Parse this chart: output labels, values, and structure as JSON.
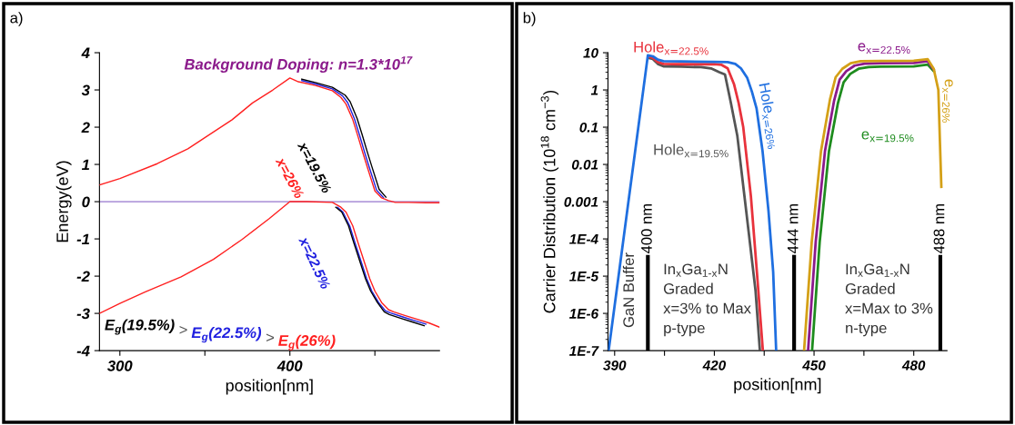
{
  "chart_data": [
    {
      "type": "line",
      "title": "a)",
      "xlabel": "position[nm]",
      "ylabel": "Energy(eV)",
      "xlim": [
        288,
        488
      ],
      "xticks": [
        300,
        {
          "value": 350,
          "label": null
        },
        400,
        {
          "value": 450,
          "label": null
        }
      ],
      "ylim": [
        -4,
        4
      ],
      "yticks": [
        -4,
        -3,
        -2,
        -1,
        0,
        1,
        2,
        3,
        4
      ],
      "ref_lines": [
        {
          "axis": "y",
          "value": 0,
          "color": "#b39ddb"
        }
      ],
      "series": [
        {
          "color": "#ff2020",
          "x": [
            288,
            300,
            315,
            336,
            355,
            372,
            388,
            400,
            410,
            425,
            430,
            433,
            437,
            440,
            444,
            447,
            450,
            454,
            458,
            461,
            468,
            475,
            482,
            488
          ],
          "values": [
            -3.0,
            -2.73,
            -2.42,
            -2.02,
            -1.55,
            -1.01,
            -0.45,
            0.0,
            0.0,
            -0.02,
            -0.15,
            -0.28,
            -0.65,
            -1.09,
            -1.65,
            -2.07,
            -2.4,
            -2.71,
            -2.9,
            -2.96,
            -3.06,
            -3.16,
            -3.26,
            -3.37
          ]
        },
        {
          "color": "#2020e0",
          "x": [
            407,
            415,
            425,
            431,
            434,
            438,
            441,
            444,
            447,
            451,
            455
          ],
          "values": [
            3.25,
            3.16,
            3.03,
            2.84,
            2.66,
            2.22,
            1.78,
            1.32,
            0.88,
            0.31,
            0.11
          ]
        },
        {
          "name": "x=22.5%",
          "color": "#2020e0",
          "x": [
            428,
            431.2,
            435.2,
            438.2,
            442.2,
            445.2,
            448.2,
            452.2,
            456.2,
            459.2,
            466,
            473,
            480
          ],
          "values": [
            -0.15,
            -0.28,
            -0.65,
            -1.09,
            -1.65,
            -2.07,
            -2.4,
            -2.71,
            -2.93,
            -2.99,
            -3.09,
            -3.19,
            -3.29
          ]
        },
        {
          "name": "x=19.5%",
          "color": "#000000",
          "x": [
            407,
            415,
            425,
            432.5,
            435.5,
            439.5,
            442.5,
            445.5,
            448.5,
            452.5,
            456.5
          ],
          "values": [
            3.29,
            3.2,
            3.07,
            2.86,
            2.68,
            2.24,
            1.8,
            1.34,
            0.9,
            0.33,
            0.12
          ]
        },
        {
          "color": "#000000",
          "x": [
            427,
            430.5,
            434.5,
            437.5,
            441.5,
            444.5,
            447.5,
            451.5,
            455.5,
            458.5,
            465,
            472,
            479
          ],
          "values": [
            -0.15,
            -0.28,
            -0.65,
            -1.09,
            -1.65,
            -2.07,
            -2.4,
            -2.71,
            -2.96,
            -3.03,
            -3.13,
            -3.23,
            -3.33
          ]
        },
        {
          "name": "x=26%",
          "color": "#ff2020",
          "x": [
            288,
            300,
            322,
            340,
            354,
            366,
            378,
            390,
            400,
            405,
            415,
            425,
            430,
            433,
            437,
            440,
            443,
            446,
            450,
            454,
            458,
            462,
            470,
            480,
            488
          ],
          "values": [
            0.45,
            0.62,
            1.02,
            1.42,
            1.84,
            2.2,
            2.65,
            3.0,
            3.32,
            3.22,
            3.12,
            2.98,
            2.8,
            2.62,
            2.2,
            1.76,
            1.3,
            0.86,
            0.29,
            0.1,
            0.03,
            -0.02,
            -0.02,
            -0.03,
            -0.03
          ]
        }
      ],
      "annotations": [
        "Background Doping: n=1.3*10$^{17}$",
        "E$_{g}$(19.5%)",
        ">",
        "E$_{g}$(22.5%)",
        ">",
        "E$_{g}$(26%)"
      ]
    },
    {
      "type": "line",
      "title": "b)",
      "xlabel": "position[nm]",
      "ylabel": "Carrier Distribution (10$^{18}$ cm$^{−3}$)",
      "log": "y",
      "xlim": [
        388,
        490
      ],
      "xticks": [
        390,
        {
          "value": 405,
          "label": null
        },
        420,
        {
          "value": 435,
          "label": null
        },
        450,
        {
          "value": 465,
          "label": null
        },
        480
      ],
      "ylim": [
        1e-07,
        10
      ],
      "yticks": [
        {
          "value": 1e-07,
          "label": "1E-7"
        },
        {
          "value": 1e-06,
          "label": "1E-6"
        },
        {
          "value": 1e-05,
          "label": "1E-5"
        },
        {
          "value": 0.0001,
          "label": "1E-4"
        },
        0.001,
        0.01,
        0.1,
        1,
        10
      ],
      "ref_lines": [
        {
          "axis": "x",
          "value": 400,
          "label": "400 nm",
          "color": "#000000"
        },
        {
          "axis": "x",
          "value": 444,
          "label": "444 nm",
          "color": "#000000"
        },
        {
          "axis": "x",
          "value": 488,
          "label": "488 nm",
          "color": "#000000"
        }
      ],
      "series": [
        {
          "name": "Hole$_{x=19.5%}$",
          "color": "#555555",
          "x": [
            400.4,
            401.5,
            403,
            404.7,
            410,
            416,
            419,
            421.5,
            423.2,
            425,
            426.9,
            429.6,
            432.4,
            433.7
          ],
          "values": [
            7.2,
            6.8,
            5.0,
            4.3,
            4.2,
            4.1,
            3.8,
            3.0,
            2.6,
            0.44,
            0.06,
            0.00055,
            4e-06,
            1e-07
          ]
        },
        {
          "name": "Hole$_{x=22.5%}$",
          "color": "#e8323c",
          "x": [
            400.4,
            401.5,
            403,
            404.7,
            410,
            420,
            422.2,
            424,
            425.9,
            427.3,
            428.7,
            431,
            432.8,
            434.6
          ],
          "values": [
            7.8,
            7.3,
            5.6,
            5.0,
            4.9,
            4.9,
            4.7,
            3.8,
            1.45,
            0.45,
            0.1,
            0.0014,
            1.3e-05,
            1e-07
          ]
        },
        {
          "name": "Hole$_{x=26%}$",
          "color": "#1f6fe0",
          "x": [
            388.2,
            391,
            394,
            397,
            400,
            401.5,
            403,
            404.7,
            410,
            420,
            424,
            426.3,
            428,
            429.9,
            431.3,
            432.7,
            434.5,
            436.3,
            437.7,
            438.6
          ],
          "values": [
            1e-07,
            7.6e-06,
            0.00079,
            0.081,
            8.5,
            8.0,
            6.5,
            5.9,
            5.8,
            5.7,
            5.6,
            5.0,
            3.8,
            2.1,
            0.9,
            0.32,
            0.023,
            0.00055,
            1.3e-05,
            1e-07
          ]
        },
        {
          "name": "e$_{x=19.5%}$",
          "color": "#1e8c1e",
          "x": [
            449.4,
            451.7,
            454.5,
            457.2,
            458.9,
            460.9,
            463.4,
            466.4,
            470,
            480,
            484.2,
            486
          ],
          "values": [
            1e-07,
            8.3e-05,
            0.023,
            0.45,
            1.6,
            2.7,
            3.7,
            4.1,
            4.2,
            4.3,
            4.8,
            3.2
          ]
        },
        {
          "name": "e$_{x=22.5%}$",
          "color": "#8b1a8b",
          "x": [
            448.2,
            450.5,
            453.3,
            456,
            457.7,
            459.7,
            462.2,
            465.2,
            470,
            480,
            484.2,
            486
          ],
          "values": [
            1e-07,
            8.3e-05,
            0.023,
            0.5,
            1.9,
            3.2,
            4.5,
            5.1,
            5.2,
            5.3,
            5.9,
            3.5
          ]
        },
        {
          "name": "e$_{x=26%}$",
          "color": "#d4a017",
          "x": [
            447,
            449.3,
            452.1,
            454.8,
            456.5,
            458.5,
            461,
            464,
            470,
            480,
            484.2,
            486,
            487.4,
            487.9,
            488.3
          ],
          "values": [
            1e-07,
            8.3e-05,
            0.023,
            0.56,
            2.2,
            3.7,
            5.2,
            5.9,
            6.0,
            6.1,
            6.7,
            3.7,
            1.0,
            0.034,
            0.0025
          ]
        }
      ],
      "annotations": [
        "GaN Buffer",
        "In$_{x}$Ga$_{1-x}$N\nGraded\nx=3% to Max\np-type",
        "In$_{x}$Ga$_{1-x}$N\nGraded\nx=Max to 3%\nn-type"
      ]
    }
  ]
}
